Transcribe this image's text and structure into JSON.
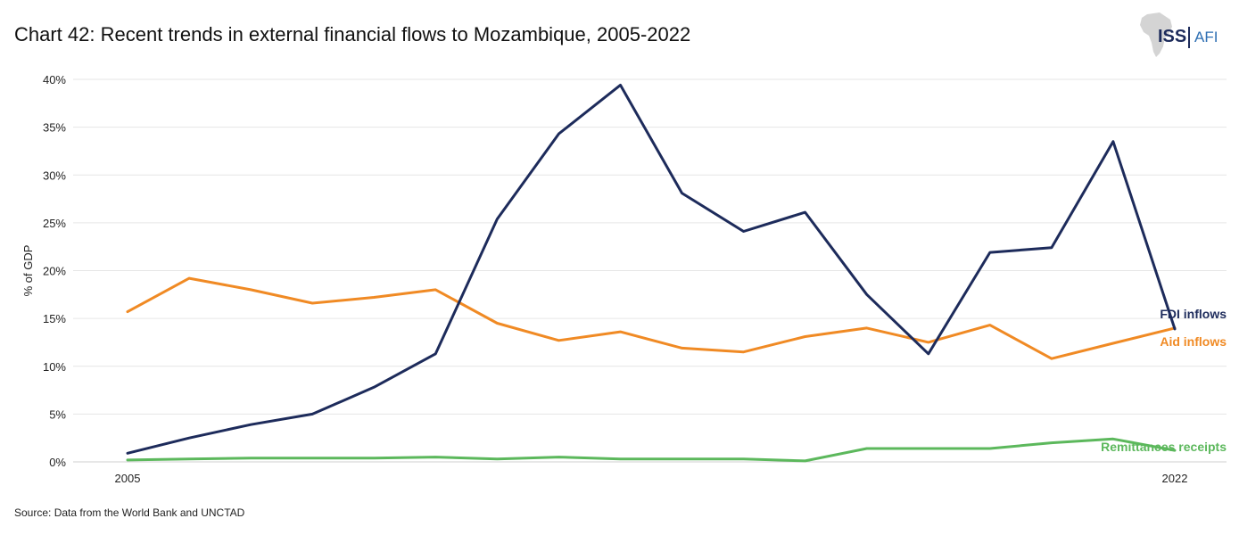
{
  "title": "Chart 42: Recent trends in external financial flows to Mozambique, 2005-2022",
  "source": "Source: Data from the World Bank and UNCTAD",
  "logo": {
    "primary": "ISS",
    "secondary": "AFI"
  },
  "colors": {
    "fdi": "#1d2b5b",
    "aid": "#f08a24",
    "remit": "#5cb85c",
    "grid": "#e6e6e6"
  },
  "chart_data": {
    "type": "line",
    "x": [
      2005,
      2006,
      2007,
      2008,
      2009,
      2010,
      2011,
      2012,
      2013,
      2014,
      2015,
      2016,
      2017,
      2018,
      2019,
      2020,
      2021,
      2022
    ],
    "x_tick_labels": [
      "2005",
      "2022"
    ],
    "y_ticks": [
      "0%",
      "5%",
      "10%",
      "15%",
      "20%",
      "25%",
      "30%",
      "35%",
      "40%"
    ],
    "ylabel": "% of GDP",
    "ylim": [
      0,
      40
    ],
    "grid": "horizontal",
    "series": [
      {
        "name": "FDI inflows",
        "color": "#1d2b5b",
        "values": [
          0.9,
          2.5,
          3.9,
          5.0,
          7.8,
          11.3,
          25.4,
          34.3,
          39.4,
          28.1,
          24.1,
          26.1,
          17.5,
          11.3,
          21.9,
          22.4,
          33.5,
          13.9
        ]
      },
      {
        "name": "Aid inflows",
        "color": "#f08a24",
        "values": [
          15.7,
          19.2,
          18.0,
          16.6,
          17.2,
          18.0,
          14.5,
          12.7,
          13.6,
          11.9,
          11.5,
          13.1,
          14.0,
          12.5,
          14.3,
          10.8,
          12.4,
          14.0
        ]
      },
      {
        "name": "Remittances receipts",
        "color": "#5cb85c",
        "values": [
          0.2,
          0.3,
          0.4,
          0.4,
          0.4,
          0.5,
          0.3,
          0.5,
          0.3,
          0.3,
          0.3,
          0.1,
          1.4,
          1.4,
          1.4,
          2.0,
          2.4,
          1.2
        ]
      }
    ]
  }
}
